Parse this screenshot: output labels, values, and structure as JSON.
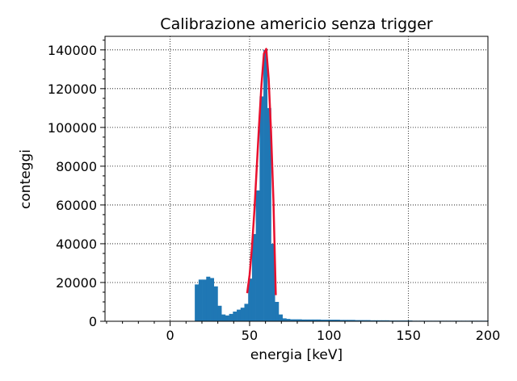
{
  "chart_data": {
    "type": "bar",
    "title": "Calibrazione americio senza trigger",
    "xlabel": "energia [keV]",
    "ylabel": "conteggi",
    "xlim": [
      -41,
      200
    ],
    "ylim": [
      0,
      147000
    ],
    "grid": true,
    "x_ticks": [
      0,
      50,
      100,
      150,
      200
    ],
    "y_ticks": [
      0,
      20000,
      40000,
      60000,
      80000,
      100000,
      120000,
      140000
    ],
    "bin_width": 2.4,
    "series": [
      {
        "type": "histogram",
        "color": "#1f77b4",
        "bins_start": [
          15.5,
          17.9,
          20.3,
          22.7,
          25.1,
          27.5,
          29.9,
          32.3,
          34.7,
          37.1,
          39.5,
          41.9,
          44.3,
          46.7,
          49.1,
          51.5,
          53.9,
          56.3,
          58.7,
          61.1,
          63.5,
          65.9,
          68.3,
          70.7,
          73.1,
          75.5,
          77.9,
          80.3,
          82.7,
          85.1,
          87.5,
          89.9,
          92.3,
          94.7,
          97.1,
          99.5,
          101.9,
          104.3,
          106.7,
          109.1,
          111.5,
          113.9,
          116.3,
          118.7,
          121.1,
          123.5,
          125.9,
          128.3,
          130.7,
          133.1,
          135.5,
          137.9,
          140.3,
          142.7,
          145.1,
          147.5,
          149.9,
          152.3,
          154.7,
          157.1,
          159.5,
          161.9,
          164.3,
          166.7,
          169.1,
          171.5,
          173.9,
          176.3,
          178.7,
          181.1,
          183.5,
          185.9,
          188.3,
          190.7,
          193.1,
          195.5,
          197.9
        ],
        "values": [
          19000,
          21500,
          21500,
          23000,
          22300,
          18000,
          8000,
          3500,
          3000,
          3800,
          5000,
          6000,
          7000,
          9000,
          22000,
          45000,
          67500,
          116000,
          140000,
          110000,
          40000,
          10000,
          3500,
          1500,
          1200,
          1000,
          1000,
          1000,
          900,
          900,
          900,
          900,
          900,
          800,
          800,
          800,
          800,
          800,
          700,
          700,
          700,
          700,
          600,
          600,
          600,
          600,
          500,
          500,
          500,
          500,
          500,
          400,
          400,
          400,
          400,
          400,
          400,
          300,
          300,
          300,
          300,
          300,
          300,
          300,
          300,
          300,
          300,
          300,
          300,
          300,
          300,
          300,
          300,
          300,
          300,
          300,
          300
        ]
      },
      {
        "type": "line",
        "color": "#e8102e",
        "x": [
          48.5,
          50,
          51.5,
          53,
          54.5,
          56,
          57.5,
          59,
          60.5,
          62,
          63.5,
          65,
          66.5
        ],
        "y": [
          14500,
          24000,
          38000,
          57000,
          79000,
          102000,
          122000,
          138000,
          140500,
          125000,
          98000,
          62000,
          13500
        ]
      }
    ]
  }
}
